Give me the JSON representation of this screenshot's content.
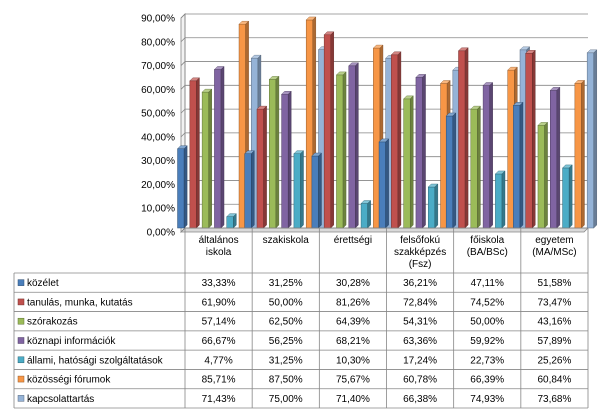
{
  "chart_data": {
    "type": "bar",
    "title": "",
    "xlabel": "",
    "ylabel": "",
    "ylim": [
      0,
      90
    ],
    "y_ticks": [
      "0,00%",
      "10,00%",
      "20,00%",
      "30,00%",
      "40,00%",
      "50,00%",
      "60,00%",
      "70,00%",
      "80,00%",
      "90,00%"
    ],
    "grid": true,
    "legend_position": "data-table",
    "categories": [
      [
        "általános",
        "iskola"
      ],
      [
        "szakiskola"
      ],
      [
        "érettségi"
      ],
      [
        "felsőfokú",
        "szakképzés",
        "(Fsz)"
      ],
      [
        "főiskola",
        "(BA/BSc)"
      ],
      [
        "egyetem",
        "(MA/MSc)"
      ]
    ],
    "series": [
      {
        "name": "közélet",
        "color": "#4a7ebb",
        "values": [
          33.33,
          31.25,
          30.28,
          36.21,
          47.11,
          51.58
        ],
        "labels": [
          "33,33%",
          "31,25%",
          "30,28%",
          "36,21%",
          "47,11%",
          "51,58%"
        ]
      },
      {
        "name": "tanulás, munka, kutatás",
        "color": "#c0504d",
        "values": [
          61.9,
          50.0,
          81.26,
          72.84,
          74.52,
          73.47
        ],
        "labels": [
          "61,90%",
          "50,00%",
          "81,26%",
          "72,84%",
          "74,52%",
          "73,47%"
        ]
      },
      {
        "name": "szórakozás",
        "color": "#9bbb59",
        "values": [
          57.14,
          62.5,
          64.39,
          54.31,
          50.0,
          43.16
        ],
        "labels": [
          "57,14%",
          "62,50%",
          "64,39%",
          "54,31%",
          "50,00%",
          "43,16%"
        ]
      },
      {
        "name": "köznapi információk",
        "color": "#8064a2",
        "values": [
          66.67,
          56.25,
          68.21,
          63.36,
          59.92,
          57.89
        ],
        "labels": [
          "66,67%",
          "56,25%",
          "68,21%",
          "63,36%",
          "59,92%",
          "57,89%"
        ]
      },
      {
        "name": "állami, hatósági szolgáltatások",
        "color": "#4bacc6",
        "values": [
          4.77,
          31.25,
          10.3,
          17.24,
          22.73,
          25.26
        ],
        "labels": [
          "4,77%",
          "31,25%",
          "10,30%",
          "17,24%",
          "22,73%",
          "25,26%"
        ]
      },
      {
        "name": "közösségi fórumok",
        "color": "#f79646",
        "values": [
          85.71,
          87.5,
          75.67,
          60.78,
          66.39,
          60.84
        ],
        "labels": [
          "85,71%",
          "87,50%",
          "75,67%",
          "60,78%",
          "66,39%",
          "60,84%"
        ]
      },
      {
        "name": "kapcsolattartás",
        "color": "#95b3d7",
        "values": [
          71.43,
          75.0,
          71.4,
          66.38,
          74.93,
          73.68
        ],
        "labels": [
          "71,43%",
          "75,00%",
          "71,40%",
          "66,38%",
          "74,93%",
          "73,68%"
        ]
      }
    ]
  }
}
